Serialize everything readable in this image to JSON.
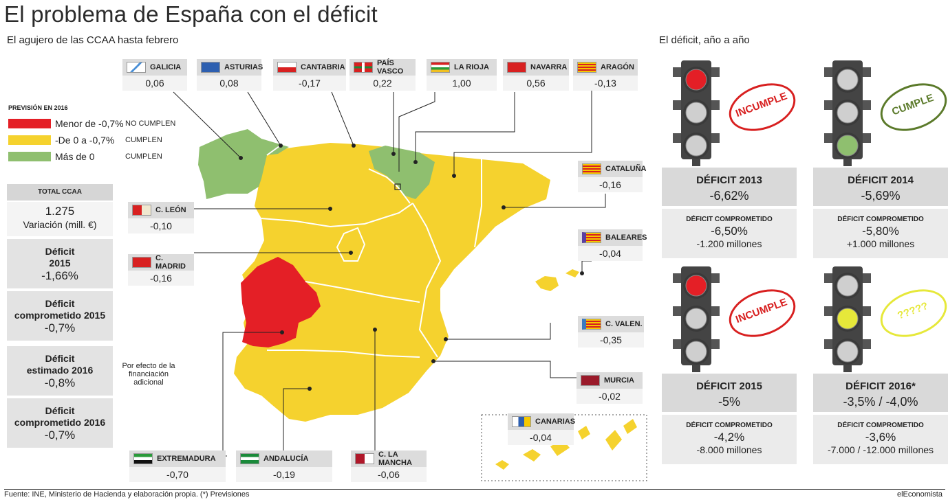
{
  "title": "El problema de España con el déficit",
  "subtitle_left": "El agujero de las CCAA hasta febrero",
  "subtitle_right": "El déficit, año a año",
  "colors": {
    "red": "#e41f26",
    "yellow": "#f5d22e",
    "green": "#8fbf6f",
    "panel": "#e3e3e3"
  },
  "legend": {
    "title": "PREVISIÓN EN 2016",
    "items": [
      {
        "label": "Menor de -0,7%",
        "status": "NO CUMPLEN",
        "color": "#e41f26"
      },
      {
        "label": "-De 0 a -0,7%",
        "status": "CUMPLEN",
        "color": "#f5d22e"
      },
      {
        "label": "Más de 0",
        "status": "CUMPLEN",
        "color": "#8fbf6f"
      }
    ]
  },
  "left_stats": {
    "total_head": "TOTAL CCAA",
    "total_value": "1.275",
    "total_sub": "Variación (mill. €)",
    "d2015_title": "Déficit\n2015",
    "d2015_value": "-1,66%",
    "comp2015_title": "Déficit\ncomprometido 2015",
    "comp2015_value": "-0,7%",
    "est2016_title": "Déficit\nestimado 2016",
    "est2016_value": "-0,8%",
    "est_note": "Por efecto de la\nfinanciación\nadicional",
    "comp2016_title": "Déficit\ncomprometido 2016",
    "comp2016_value": "-0,7%"
  },
  "chart_data": {
    "type": "table",
    "title": "El problema de España con el déficit",
    "regions": [
      {
        "name": "GALICIA",
        "value": "0,06",
        "category": "Más de 0"
      },
      {
        "name": "ASTURIAS",
        "value": "0,08",
        "category": "Más de 0"
      },
      {
        "name": "CANTABRIA",
        "value": "-0,17",
        "category": "-De 0 a -0,7%"
      },
      {
        "name": "PAÍS VASCO",
        "value": "0,22",
        "category": "Más de 0"
      },
      {
        "name": "LA RIOJA",
        "value": "1,00",
        "category": "Más de 0"
      },
      {
        "name": "NAVARRA",
        "value": "0,56",
        "category": "Más de 0"
      },
      {
        "name": "ARAGÓN",
        "value": "-0,13",
        "category": "-De 0 a -0,7%"
      },
      {
        "name": "CATALUÑA",
        "value": "-0,16",
        "category": "-De 0 a -0,7%"
      },
      {
        "name": "C. LEÓN",
        "value": "-0,10",
        "category": "-De 0 a -0,7%"
      },
      {
        "name": "C. MADRID",
        "value": "-0,16",
        "category": "-De 0 a -0,7%"
      },
      {
        "name": "BALEARES",
        "value": "-0,04",
        "category": "-De 0 a -0,7%"
      },
      {
        "name": "C. VALEN.",
        "value": "-0,35",
        "category": "-De 0 a -0,7%"
      },
      {
        "name": "MURCIA",
        "value": "-0,02",
        "category": "-De 0 a -0,7%"
      },
      {
        "name": "CANARIAS",
        "value": "-0,04",
        "category": "-De 0 a -0,7%"
      },
      {
        "name": "EXTREMADURA",
        "value": "-0,70",
        "category": "Menor de -0,7%"
      },
      {
        "name": "ANDALUCÍA",
        "value": "-0,19",
        "category": "-De 0 a -0,7%"
      },
      {
        "name": "C. LA MANCHA",
        "value": "-0,06",
        "category": "-De 0 a -0,7%"
      }
    ],
    "yearly": [
      {
        "year": "DÉFICIT 2013",
        "deficit": "-6,62%",
        "committed_label": "DÉFICIT COMPROMETIDO",
        "committed": "-6,50%",
        "diff": "-1.200 millones",
        "light": "red",
        "stamp": "INCUMPLE"
      },
      {
        "year": "DÉFICIT 2014",
        "deficit": "-5,69%",
        "committed_label": "DÉFICIT COMPROMETIDO",
        "committed": "-5,80%",
        "diff": "+1.000 millones",
        "light": "green",
        "stamp": "CUMPLE"
      },
      {
        "year": "DÉFICIT 2015",
        "deficit": "-5%",
        "committed_label": "DÉFICIT COMPROMETIDO",
        "committed": "-4,2%",
        "diff": "-8.000 millones",
        "light": "red",
        "stamp": "INCUMPLE"
      },
      {
        "year": "DÉFICIT 2016*",
        "deficit": "-3,5% / -4,0%",
        "committed_label": "DÉFICIT COMPROMETIDO",
        "committed": "-3,6%",
        "diff": "-7.000 / -12.000 millones",
        "light": "yellow",
        "stamp": "?????"
      }
    ]
  },
  "footer": "Fuente: INE, Ministerio de Hacienda y elaboración propia. (*) Previsiones",
  "brand": "elEconomista"
}
